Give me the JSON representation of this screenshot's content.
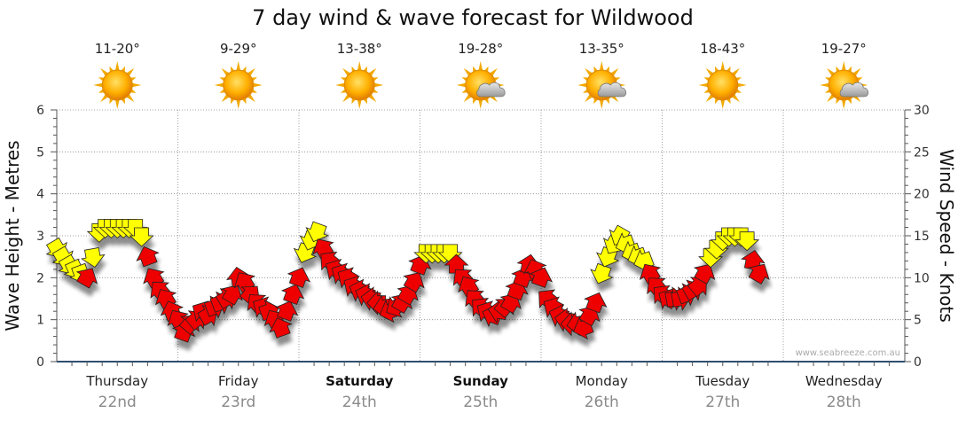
{
  "chart_data": {
    "type": "wind_wave_forecast",
    "title": "7 day wind & wave forecast for Wildwood",
    "ylabel_left": "Wave Height - Metres",
    "ylabel_right": "Wind Speed - Knots",
    "ylim_left": [
      0,
      6
    ],
    "ylim_right": [
      0,
      30
    ],
    "yticks_left": [
      "0",
      "1",
      "2",
      "3",
      "4",
      "5",
      "6"
    ],
    "yticks_right": [
      "0",
      "5",
      "10",
      "15",
      "20",
      "25",
      "30"
    ],
    "credit": "www.seabreeze.com.au",
    "colors": {
      "onshore": "#ee0000",
      "offshore": "#ffff00",
      "outline": "#222222",
      "grid": "#888888",
      "axis": "#2f4f6f"
    },
    "days": [
      {
        "name": "Thursday",
        "date": "22nd",
        "bold": false,
        "temp": "11-20°",
        "icon": "sun-icon"
      },
      {
        "name": "Friday",
        "date": "23rd",
        "bold": false,
        "temp": "9-29°",
        "icon": "sun-icon"
      },
      {
        "name": "Saturday",
        "date": "24th",
        "bold": true,
        "temp": "13-38°",
        "icon": "sun-icon"
      },
      {
        "name": "Sunday",
        "date": "25th",
        "bold": true,
        "temp": "19-28°",
        "icon": "sun-cloud-icon"
      },
      {
        "name": "Monday",
        "date": "26th",
        "bold": false,
        "temp": "13-35°",
        "icon": "sun-cloud-icon"
      },
      {
        "name": "Tuesday",
        "date": "27th",
        "bold": false,
        "temp": "18-43°",
        "icon": "sun-icon"
      },
      {
        "name": "Wednesday",
        "date": "28th",
        "bold": false,
        "temp": "19-27°",
        "icon": "sun-cloud-icon"
      }
    ],
    "wind": [
      {
        "t": 0.0,
        "knots": 13.5,
        "dir": 150,
        "color": "yellow"
      },
      {
        "t": 0.05,
        "knots": 12.5,
        "dir": 150,
        "color": "yellow"
      },
      {
        "t": 0.1,
        "knots": 11.5,
        "dir": 150,
        "color": "yellow"
      },
      {
        "t": 0.15,
        "knots": 11.0,
        "dir": 155,
        "color": "yellow"
      },
      {
        "t": 0.2,
        "knots": 10.5,
        "dir": 160,
        "color": "yellow"
      },
      {
        "t": 0.25,
        "knots": 10.0,
        "dir": 30,
        "color": "red"
      },
      {
        "t": 0.3,
        "knots": 12.5,
        "dir": 170,
        "color": "yellow"
      },
      {
        "t": 0.35,
        "knots": 15.5,
        "dir": 180,
        "color": "yellow"
      },
      {
        "t": 0.4,
        "knots": 16.0,
        "dir": 180,
        "color": "yellow"
      },
      {
        "t": 0.45,
        "knots": 16.0,
        "dir": 180,
        "color": "yellow"
      },
      {
        "t": 0.5,
        "knots": 16.0,
        "dir": 180,
        "color": "yellow"
      },
      {
        "t": 0.55,
        "knots": 16.0,
        "dir": 180,
        "color": "yellow"
      },
      {
        "t": 0.6,
        "knots": 16.0,
        "dir": 180,
        "color": "yellow"
      },
      {
        "t": 0.65,
        "knots": 16.0,
        "dir": 180,
        "color": "yellow"
      },
      {
        "t": 0.7,
        "knots": 15.0,
        "dir": 180,
        "color": "yellow"
      },
      {
        "t": 0.75,
        "knots": 12.5,
        "dir": 340,
        "color": "red"
      },
      {
        "t": 0.8,
        "knots": 10.0,
        "dir": 330,
        "color": "red"
      },
      {
        "t": 0.85,
        "knots": 8.5,
        "dir": 320,
        "color": "red"
      },
      {
        "t": 0.9,
        "knots": 7.5,
        "dir": 330,
        "color": "red"
      },
      {
        "t": 0.95,
        "knots": 6.0,
        "dir": 340,
        "color": "red"
      },
      {
        "t": 1.0,
        "knots": 5.0,
        "dir": 330,
        "color": "red"
      },
      {
        "t": 1.05,
        "knots": 3.5,
        "dir": 20,
        "color": "red"
      },
      {
        "t": 1.1,
        "knots": 4.5,
        "dir": 40,
        "color": "red"
      },
      {
        "t": 1.15,
        "knots": 5.0,
        "dir": 50,
        "color": "red"
      },
      {
        "t": 1.2,
        "knots": 6.0,
        "dir": 300,
        "color": "red"
      },
      {
        "t": 1.25,
        "knots": 5.5,
        "dir": 60,
        "color": "red"
      },
      {
        "t": 1.3,
        "knots": 6.5,
        "dir": 70,
        "color": "red"
      },
      {
        "t": 1.35,
        "knots": 7.0,
        "dir": 70,
        "color": "red"
      },
      {
        "t": 1.4,
        "knots": 7.5,
        "dir": 60,
        "color": "red"
      },
      {
        "t": 1.45,
        "knots": 8.0,
        "dir": 30,
        "color": "red"
      },
      {
        "t": 1.5,
        "knots": 10.0,
        "dir": 350,
        "color": "red"
      },
      {
        "t": 1.55,
        "knots": 9.5,
        "dir": 330,
        "color": "red"
      },
      {
        "t": 1.6,
        "knots": 8.0,
        "dir": 40,
        "color": "red"
      },
      {
        "t": 1.65,
        "knots": 7.0,
        "dir": 320,
        "color": "red"
      },
      {
        "t": 1.7,
        "knots": 6.5,
        "dir": 300,
        "color": "red"
      },
      {
        "t": 1.75,
        "knots": 6.0,
        "dir": 70,
        "color": "red"
      },
      {
        "t": 1.8,
        "knots": 5.0,
        "dir": 330,
        "color": "red"
      },
      {
        "t": 1.85,
        "knots": 4.0,
        "dir": 340,
        "color": "red"
      },
      {
        "t": 1.9,
        "knots": 6.0,
        "dir": 20,
        "color": "red"
      },
      {
        "t": 1.95,
        "knots": 8.0,
        "dir": 20,
        "color": "red"
      },
      {
        "t": 2.0,
        "knots": 10.0,
        "dir": 20,
        "color": "red"
      },
      {
        "t": 2.05,
        "knots": 13.0,
        "dir": 200,
        "color": "yellow"
      },
      {
        "t": 2.1,
        "knots": 14.5,
        "dir": 200,
        "color": "yellow"
      },
      {
        "t": 2.15,
        "knots": 15.5,
        "dir": 200,
        "color": "yellow"
      },
      {
        "t": 2.2,
        "knots": 13.5,
        "dir": 330,
        "color": "red"
      },
      {
        "t": 2.25,
        "knots": 12.0,
        "dir": 310,
        "color": "red"
      },
      {
        "t": 2.3,
        "knots": 11.0,
        "dir": 300,
        "color": "red"
      },
      {
        "t": 2.35,
        "knots": 10.5,
        "dir": 300,
        "color": "red"
      },
      {
        "t": 2.4,
        "knots": 10.0,
        "dir": 300,
        "color": "red"
      },
      {
        "t": 2.45,
        "knots": 9.0,
        "dir": 300,
        "color": "red"
      },
      {
        "t": 2.5,
        "knots": 8.5,
        "dir": 290,
        "color": "red"
      },
      {
        "t": 2.55,
        "knots": 8.0,
        "dir": 290,
        "color": "red"
      },
      {
        "t": 2.6,
        "knots": 7.5,
        "dir": 280,
        "color": "red"
      },
      {
        "t": 2.65,
        "knots": 7.0,
        "dir": 270,
        "color": "red"
      },
      {
        "t": 2.7,
        "knots": 6.5,
        "dir": 260,
        "color": "red"
      },
      {
        "t": 2.75,
        "knots": 6.0,
        "dir": 250,
        "color": "red"
      },
      {
        "t": 2.8,
        "knots": 6.5,
        "dir": 240,
        "color": "red"
      },
      {
        "t": 2.85,
        "knots": 7.0,
        "dir": 30,
        "color": "red"
      },
      {
        "t": 2.9,
        "knots": 8.0,
        "dir": 30,
        "color": "red"
      },
      {
        "t": 2.95,
        "knots": 9.5,
        "dir": 30,
        "color": "red"
      },
      {
        "t": 3.0,
        "knots": 11.5,
        "dir": 20,
        "color": "red"
      },
      {
        "t": 3.05,
        "knots": 13.0,
        "dir": 180,
        "color": "yellow"
      },
      {
        "t": 3.1,
        "knots": 13.0,
        "dir": 180,
        "color": "yellow"
      },
      {
        "t": 3.15,
        "knots": 13.0,
        "dir": 180,
        "color": "yellow"
      },
      {
        "t": 3.2,
        "knots": 13.0,
        "dir": 180,
        "color": "yellow"
      },
      {
        "t": 3.25,
        "knots": 13.0,
        "dir": 180,
        "color": "yellow"
      },
      {
        "t": 3.3,
        "knots": 11.5,
        "dir": 0,
        "color": "red"
      },
      {
        "t": 3.35,
        "knots": 10.0,
        "dir": 320,
        "color": "red"
      },
      {
        "t": 3.4,
        "knots": 9.0,
        "dir": 330,
        "color": "red"
      },
      {
        "t": 3.45,
        "knots": 7.5,
        "dir": 320,
        "color": "red"
      },
      {
        "t": 3.5,
        "knots": 6.5,
        "dir": 310,
        "color": "red"
      },
      {
        "t": 3.55,
        "knots": 6.0,
        "dir": 300,
        "color": "red"
      },
      {
        "t": 3.6,
        "knots": 5.5,
        "dir": 290,
        "color": "red"
      },
      {
        "t": 3.65,
        "knots": 6.0,
        "dir": 280,
        "color": "red"
      },
      {
        "t": 3.7,
        "knots": 6.5,
        "dir": 40,
        "color": "red"
      },
      {
        "t": 3.75,
        "knots": 7.0,
        "dir": 30,
        "color": "red"
      },
      {
        "t": 3.8,
        "knots": 8.5,
        "dir": 20,
        "color": "red"
      },
      {
        "t": 3.85,
        "knots": 10.0,
        "dir": 20,
        "color": "red"
      },
      {
        "t": 3.9,
        "knots": 11.5,
        "dir": 10,
        "color": "red"
      },
      {
        "t": 3.95,
        "knots": 11.0,
        "dir": 340,
        "color": "red"
      },
      {
        "t": 4.0,
        "knots": 10.0,
        "dir": 20,
        "color": "red"
      },
      {
        "t": 4.05,
        "knots": 7.5,
        "dir": 310,
        "color": "red"
      },
      {
        "t": 4.1,
        "knots": 6.5,
        "dir": 300,
        "color": "red"
      },
      {
        "t": 4.15,
        "knots": 5.5,
        "dir": 290,
        "color": "red"
      },
      {
        "t": 4.2,
        "knots": 5.0,
        "dir": 280,
        "color": "red"
      },
      {
        "t": 4.25,
        "knots": 4.5,
        "dir": 270,
        "color": "red"
      },
      {
        "t": 4.3,
        "knots": 4.5,
        "dir": 260,
        "color": "red"
      },
      {
        "t": 4.35,
        "knots": 4.0,
        "dir": 250,
        "color": "red"
      },
      {
        "t": 4.4,
        "knots": 5.5,
        "dir": 30,
        "color": "red"
      },
      {
        "t": 4.45,
        "knots": 7.0,
        "dir": 20,
        "color": "red"
      },
      {
        "t": 4.5,
        "knots": 10.5,
        "dir": 200,
        "color": "yellow"
      },
      {
        "t": 4.55,
        "knots": 12.5,
        "dir": 200,
        "color": "yellow"
      },
      {
        "t": 4.6,
        "knots": 14.0,
        "dir": 210,
        "color": "yellow"
      },
      {
        "t": 4.65,
        "knots": 15.0,
        "dir": 210,
        "color": "yellow"
      },
      {
        "t": 4.7,
        "knots": 14.0,
        "dir": 250,
        "color": "yellow"
      },
      {
        "t": 4.75,
        "knots": 13.0,
        "dir": 250,
        "color": "yellow"
      },
      {
        "t": 4.8,
        "knots": 12.5,
        "dir": 250,
        "color": "yellow"
      },
      {
        "t": 4.85,
        "knots": 12.0,
        "dir": 250,
        "color": "yellow"
      },
      {
        "t": 4.9,
        "knots": 10.5,
        "dir": 330,
        "color": "red"
      },
      {
        "t": 4.95,
        "knots": 9.0,
        "dir": 320,
        "color": "red"
      },
      {
        "t": 5.0,
        "knots": 8.0,
        "dir": 310,
        "color": "red"
      },
      {
        "t": 5.05,
        "knots": 7.5,
        "dir": 300,
        "color": "red"
      },
      {
        "t": 5.1,
        "knots": 7.5,
        "dir": 80,
        "color": "red"
      },
      {
        "t": 5.15,
        "knots": 7.5,
        "dir": 80,
        "color": "red"
      },
      {
        "t": 5.2,
        "knots": 8.0,
        "dir": 70,
        "color": "red"
      },
      {
        "t": 5.25,
        "knots": 8.5,
        "dir": 60,
        "color": "red"
      },
      {
        "t": 5.3,
        "knots": 9.0,
        "dir": 50,
        "color": "red"
      },
      {
        "t": 5.35,
        "knots": 10.5,
        "dir": 30,
        "color": "red"
      },
      {
        "t": 5.4,
        "knots": 12.5,
        "dir": 180,
        "color": "yellow"
      },
      {
        "t": 5.45,
        "knots": 13.5,
        "dir": 180,
        "color": "yellow"
      },
      {
        "t": 5.5,
        "knots": 14.5,
        "dir": 180,
        "color": "yellow"
      },
      {
        "t": 5.55,
        "knots": 15.0,
        "dir": 180,
        "color": "yellow"
      },
      {
        "t": 5.6,
        "knots": 15.0,
        "dir": 180,
        "color": "yellow"
      },
      {
        "t": 5.65,
        "knots": 15.0,
        "dir": 180,
        "color": "yellow"
      },
      {
        "t": 5.7,
        "knots": 14.5,
        "dir": 180,
        "color": "yellow"
      },
      {
        "t": 5.75,
        "knots": 12.0,
        "dir": 10,
        "color": "red"
      },
      {
        "t": 5.8,
        "knots": 10.5,
        "dir": 30,
        "color": "red"
      }
    ]
  }
}
